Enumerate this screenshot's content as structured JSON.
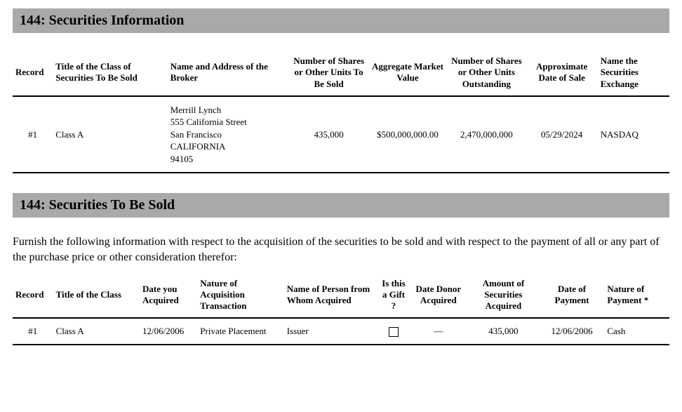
{
  "section1": {
    "title": "144: Securities Information",
    "headers": {
      "record": "Record",
      "class_title": "Title of the Class of Securities To Be Sold",
      "broker": "Name and Address of the Broker",
      "shares_sold": "Number of Shares or Other Units To Be Sold",
      "market_value": "Aggregate Market Value",
      "outstanding": "Number of Shares or Other Units Outstanding",
      "sale_date": "Approximate Date of Sale",
      "exchange": "Name the Securities Exchange"
    },
    "row": {
      "record": "#1",
      "class_title": "Class A",
      "broker_l1": "Merrill Lynch",
      "broker_l2": "555 California Street",
      "broker_l3": "San Francisco",
      "broker_l4": "CALIFORNIA",
      "broker_l5": "94105",
      "shares_sold": "435,000",
      "market_value": "$500,000,000.00",
      "outstanding": "2,470,000,000",
      "sale_date": "05/29/2024",
      "exchange": "NASDAQ"
    },
    "colwidths": [
      "56px",
      "160px",
      "170px",
      "110px",
      "110px",
      "110px",
      "100px",
      "100px"
    ]
  },
  "section2": {
    "title": "144: Securities To Be Sold",
    "instruction": "Furnish the following information with respect to the acquisition of the securities to be sold and with respect to the payment of all or any part of the purchase price or other consideration therefor:",
    "headers": {
      "record": "Record",
      "class_title": "Title of the Class",
      "date_acquired": "Date you Acquired",
      "nature_txn": "Nature of Acquisition Transaction",
      "from_whom": "Name of Person from Whom Acquired",
      "is_gift": "Is this a Gift ?",
      "donor_date": "Date Donor Acquired",
      "amount": "Amount of Securities Acquired",
      "pay_date": "Date of Payment",
      "pay_nature": "Nature of Payment *"
    },
    "row": {
      "record": "#1",
      "class_title": "Class A",
      "date_acquired": "12/06/2006",
      "nature_txn": "Private Placement",
      "from_whom": "Issuer",
      "is_gift_checked": false,
      "donor_date": "—",
      "amount": "435,000",
      "pay_date": "12/06/2006",
      "pay_nature": "Cash"
    },
    "colwidths": [
      "56px",
      "120px",
      "80px",
      "120px",
      "130px",
      "44px",
      "80px",
      "100px",
      "90px",
      "90px"
    ]
  }
}
